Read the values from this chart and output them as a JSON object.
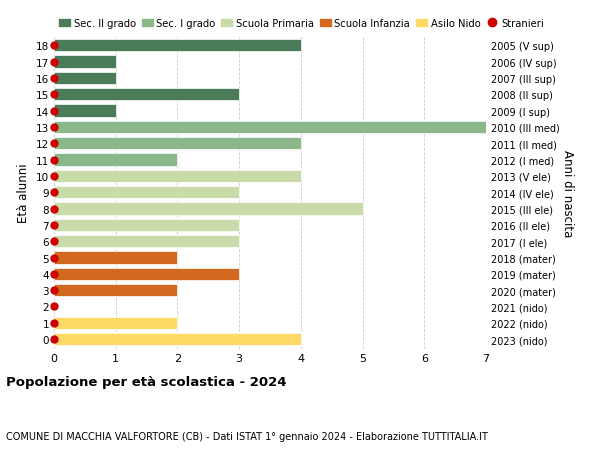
{
  "ages": [
    18,
    17,
    16,
    15,
    14,
    13,
    12,
    11,
    10,
    9,
    8,
    7,
    6,
    5,
    4,
    3,
    2,
    1,
    0
  ],
  "right_labels": [
    "2005 (V sup)",
    "2006 (IV sup)",
    "2007 (III sup)",
    "2008 (II sup)",
    "2009 (I sup)",
    "2010 (III med)",
    "2011 (II med)",
    "2012 (I med)",
    "2013 (V ele)",
    "2014 (IV ele)",
    "2015 (III ele)",
    "2016 (II ele)",
    "2017 (I ele)",
    "2018 (mater)",
    "2019 (mater)",
    "2020 (mater)",
    "2021 (nido)",
    "2022 (nido)",
    "2023 (nido)"
  ],
  "bar_data": [
    {
      "age": 18,
      "value": 4,
      "color": "#4a7c59"
    },
    {
      "age": 17,
      "value": 1,
      "color": "#4a7c59"
    },
    {
      "age": 16,
      "value": 1,
      "color": "#4a7c59"
    },
    {
      "age": 15,
      "value": 3,
      "color": "#4a7c59"
    },
    {
      "age": 14,
      "value": 1,
      "color": "#4a7c59"
    },
    {
      "age": 13,
      "value": 7,
      "color": "#8ab88a"
    },
    {
      "age": 12,
      "value": 4,
      "color": "#8ab88a"
    },
    {
      "age": 11,
      "value": 2,
      "color": "#8ab88a"
    },
    {
      "age": 10,
      "value": 4,
      "color": "#c8dba8"
    },
    {
      "age": 9,
      "value": 3,
      "color": "#c8dba8"
    },
    {
      "age": 8,
      "value": 5,
      "color": "#c8dba8"
    },
    {
      "age": 7,
      "value": 3,
      "color": "#c8dba8"
    },
    {
      "age": 6,
      "value": 3,
      "color": "#c8dba8"
    },
    {
      "age": 5,
      "value": 2,
      "color": "#d2691e"
    },
    {
      "age": 4,
      "value": 3,
      "color": "#d2691e"
    },
    {
      "age": 3,
      "value": 2,
      "color": "#d2691e"
    },
    {
      "age": 2,
      "value": 0,
      "color": "#ffd966"
    },
    {
      "age": 1,
      "value": 2,
      "color": "#ffd966"
    },
    {
      "age": 0,
      "value": 4,
      "color": "#ffd966"
    }
  ],
  "stranieri_dots": [
    18,
    17,
    16,
    15,
    14,
    13,
    12,
    11,
    10,
    9,
    8,
    7,
    6,
    5,
    4,
    3,
    2,
    1,
    0
  ],
  "xlim": [
    0,
    7
  ],
  "ylabel": "Età alunni",
  "right_ylabel": "Anni di nascita",
  "title": "Popolazione per età scolastica - 2024",
  "subtitle": "COMUNE DI MACCHIA VALFORTORE (CB) - Dati ISTAT 1° gennaio 2024 - Elaborazione TUTTITALIA.IT",
  "legend_items": [
    {
      "label": "Sec. II grado",
      "color": "#4a7c59",
      "type": "patch"
    },
    {
      "label": "Sec. I grado",
      "color": "#8ab88a",
      "type": "patch"
    },
    {
      "label": "Scuola Primaria",
      "color": "#c8dba8",
      "type": "patch"
    },
    {
      "label": "Scuola Infanzia",
      "color": "#d2691e",
      "type": "patch"
    },
    {
      "label": "Asilo Nido",
      "color": "#ffd966",
      "type": "patch"
    },
    {
      "label": "Stranieri",
      "color": "#cc0000",
      "type": "dot"
    }
  ],
  "grid_color": "#cccccc",
  "bg_color": "#ffffff",
  "bar_height": 0.75,
  "dot_size": 25
}
